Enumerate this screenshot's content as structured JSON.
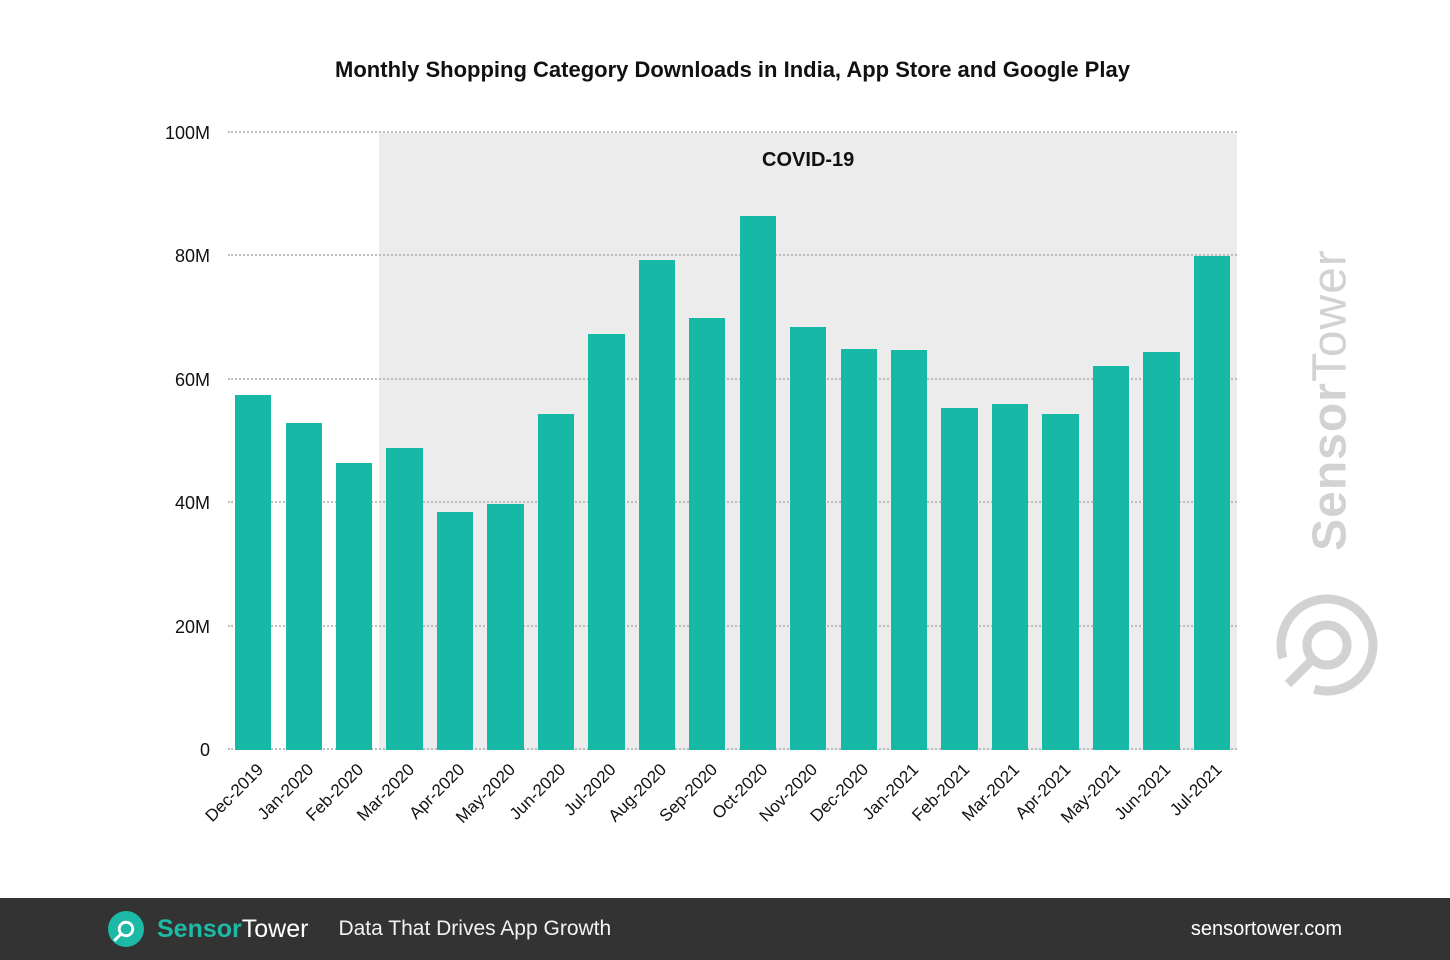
{
  "chart_data": {
    "type": "bar",
    "title": "Monthly Shopping Category Downloads in India, App Store and Google Play",
    "categories": [
      "Dec-2019",
      "Jan-2020",
      "Feb-2020",
      "Mar-2020",
      "Apr-2020",
      "May-2020",
      "Jun-2020",
      "Jul-2020",
      "Aug-2020",
      "Sep-2020",
      "Oct-2020",
      "Nov-2020",
      "Dec-2020",
      "Jan-2021",
      "Feb-2021",
      "Mar-2021",
      "Apr-2021",
      "May-2021",
      "Jun-2021",
      "Jul-2021"
    ],
    "values": [
      57.5,
      53,
      46.5,
      49,
      38.5,
      39.8,
      54.5,
      67.5,
      79.5,
      70,
      86.5,
      68.5,
      65,
      64.8,
      55.5,
      56,
      54.5,
      62.3,
      64.5,
      80
    ],
    "unit": "M",
    "xlabel": "",
    "ylabel": "",
    "ylim": [
      0,
      100
    ],
    "yticks": [
      {
        "value": 0,
        "label": "0"
      },
      {
        "value": 20,
        "label": "20M"
      },
      {
        "value": 40,
        "label": "40M"
      },
      {
        "value": 60,
        "label": "60M"
      },
      {
        "value": 80,
        "label": "80M"
      },
      {
        "value": 100,
        "label": "100M"
      }
    ],
    "grid": "dotted horizontal",
    "legend": "none",
    "bar_color": "#17B8A5",
    "annotation": {
      "label": "COVID-19",
      "start_category": "Mar-2020",
      "region_color": "#ECECEC"
    }
  },
  "watermark": {
    "part1": "Sensor",
    "part2": "Tower"
  },
  "footer": {
    "brand_part1": "Sensor",
    "brand_part2": "Tower",
    "brand_color": "#1CB9A6",
    "tagline": "Data That Drives App Growth",
    "website": "sensortower.com"
  }
}
